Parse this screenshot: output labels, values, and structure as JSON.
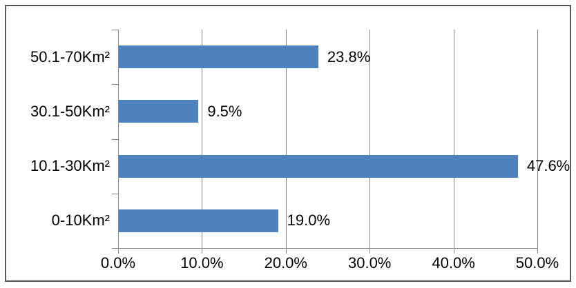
{
  "chart_data": {
    "type": "bar",
    "orientation": "horizontal",
    "title": "",
    "xlabel": "",
    "ylabel": "",
    "categories": [
      "50.1-70Km²",
      "30.1-50Km²",
      "10.1-30Km²",
      "0-10Km²"
    ],
    "values": [
      23.8,
      9.5,
      47.6,
      19.0
    ],
    "data_labels": [
      "23.8%",
      "9.5%",
      "47.6%",
      "19.0%"
    ],
    "x_ticks": [
      0,
      10,
      20,
      30,
      40,
      50
    ],
    "x_tick_labels": [
      "0.0%",
      "10.0%",
      "20.0%",
      "30.0%",
      "40.0%",
      "50.0%"
    ],
    "xlim": [
      0,
      50
    ],
    "grid": "vertical-gridlines-only",
    "legend": "none",
    "colors": {
      "bar": "#4F81BD",
      "gridline": "#868686",
      "axis": "#868686",
      "frame_border": "#595959",
      "text": "#000000",
      "background": "#ffffff"
    }
  }
}
